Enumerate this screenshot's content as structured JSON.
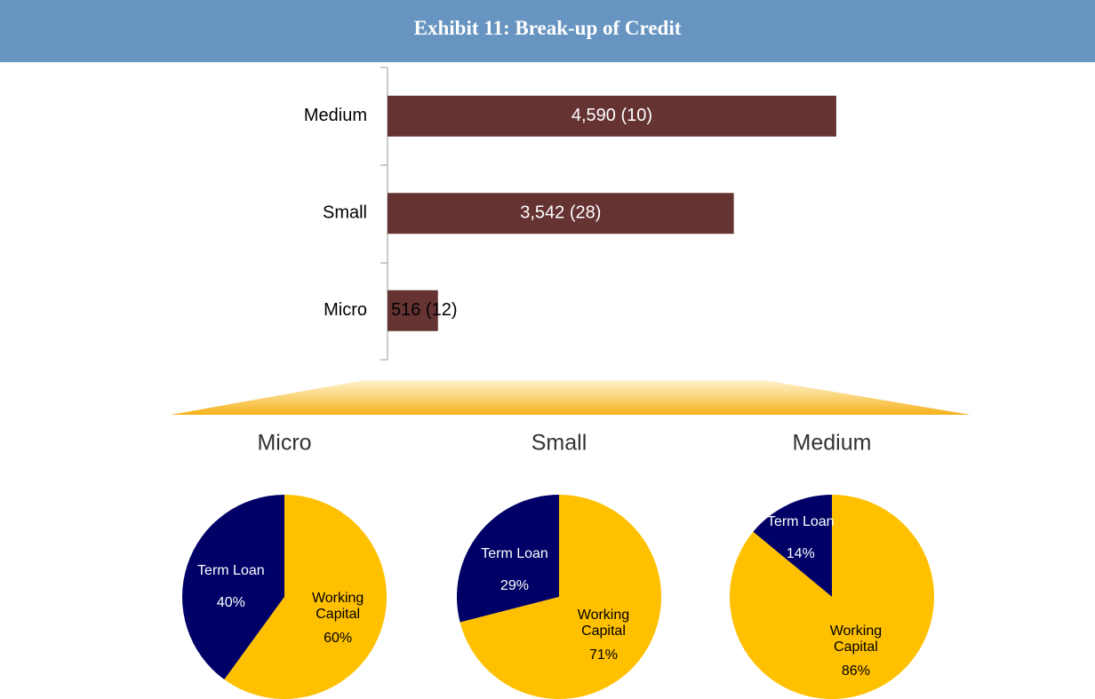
{
  "title": "Exhibit 11: Break-up of Credit",
  "chart_data": [
    {
      "type": "bar",
      "orientation": "horizontal",
      "categories": [
        "Medium",
        "Small",
        "Micro"
      ],
      "values": [
        4590,
        3542,
        516
      ],
      "value_labels": [
        "4,590 (10)",
        "3,542 (28)",
        "516 (12)"
      ],
      "color": "#663333",
      "xlim": [
        0,
        5000
      ]
    },
    {
      "type": "pie",
      "title": "Micro",
      "categories": [
        "Term Loan",
        "Working Capital"
      ],
      "values": [
        40,
        60
      ],
      "value_labels": [
        "40%",
        "60%"
      ],
      "colors": [
        "#000066",
        "#ffc000"
      ]
    },
    {
      "type": "pie",
      "title": "Small",
      "categories": [
        "Term Loan",
        "Working Capital"
      ],
      "values": [
        29,
        71
      ],
      "value_labels": [
        "29%",
        "71%"
      ],
      "colors": [
        "#000066",
        "#ffc000"
      ]
    },
    {
      "type": "pie",
      "title": "Medium",
      "categories": [
        "Term Loan",
        "Working Capital"
      ],
      "values": [
        14,
        86
      ],
      "value_labels": [
        "14%",
        "86%"
      ],
      "colors": [
        "#000066",
        "#ffc000"
      ]
    }
  ]
}
